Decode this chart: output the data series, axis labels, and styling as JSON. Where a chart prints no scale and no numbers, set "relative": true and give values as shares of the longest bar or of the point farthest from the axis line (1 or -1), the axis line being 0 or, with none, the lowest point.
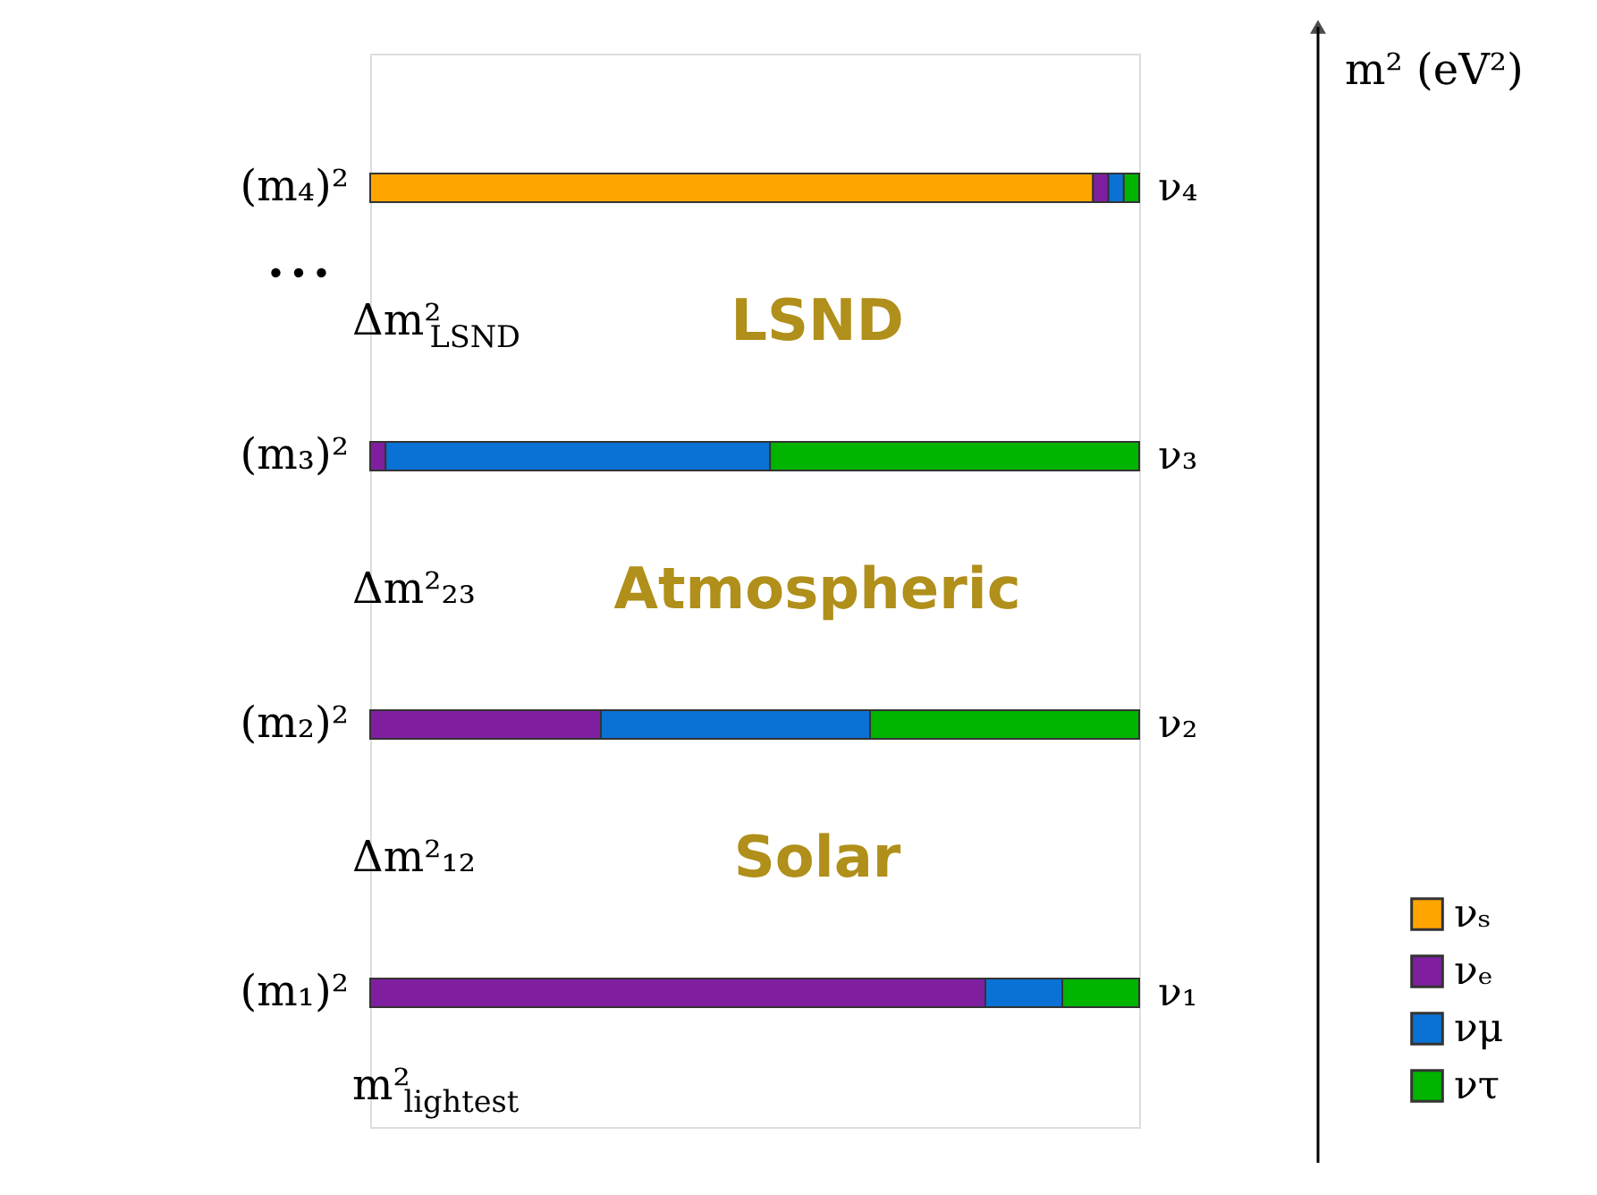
{
  "chart_data": {
    "type": "bar",
    "orientation": "horizontal",
    "stacked": true,
    "relative": true,
    "categories": [
      "ν₄",
      "ν₃",
      "ν₂",
      "ν₁"
    ],
    "ylabel": "m² (eV²)",
    "series": [
      {
        "name": "νₛ",
        "color": "#ffa500",
        "values": [
          0.94,
          0,
          0,
          0
        ]
      },
      {
        "name": "νₑ",
        "color": "#7f1fa0",
        "values": [
          0.02,
          0.02,
          0.3,
          0.8
        ]
      },
      {
        "name": "νμ",
        "color": "#0a72d4",
        "values": [
          0.02,
          0.5,
          0.35,
          0.1
        ]
      },
      {
        "name": "ντ",
        "color": "#00b400",
        "values": [
          0.02,
          0.48,
          0.35,
          0.1
        ]
      }
    ],
    "legend": "bottom right",
    "annotations": [
      "(m₄)²",
      "(m₃)²",
      "(m₂)²",
      "(m₁)²",
      "...",
      "Δm²$_{LSND}$",
      "LSND",
      "Δm²₂₃",
      "Atmospheric",
      "Δm²₁₂",
      "Solar",
      "m²$_{lightest}$"
    ]
  }
}
